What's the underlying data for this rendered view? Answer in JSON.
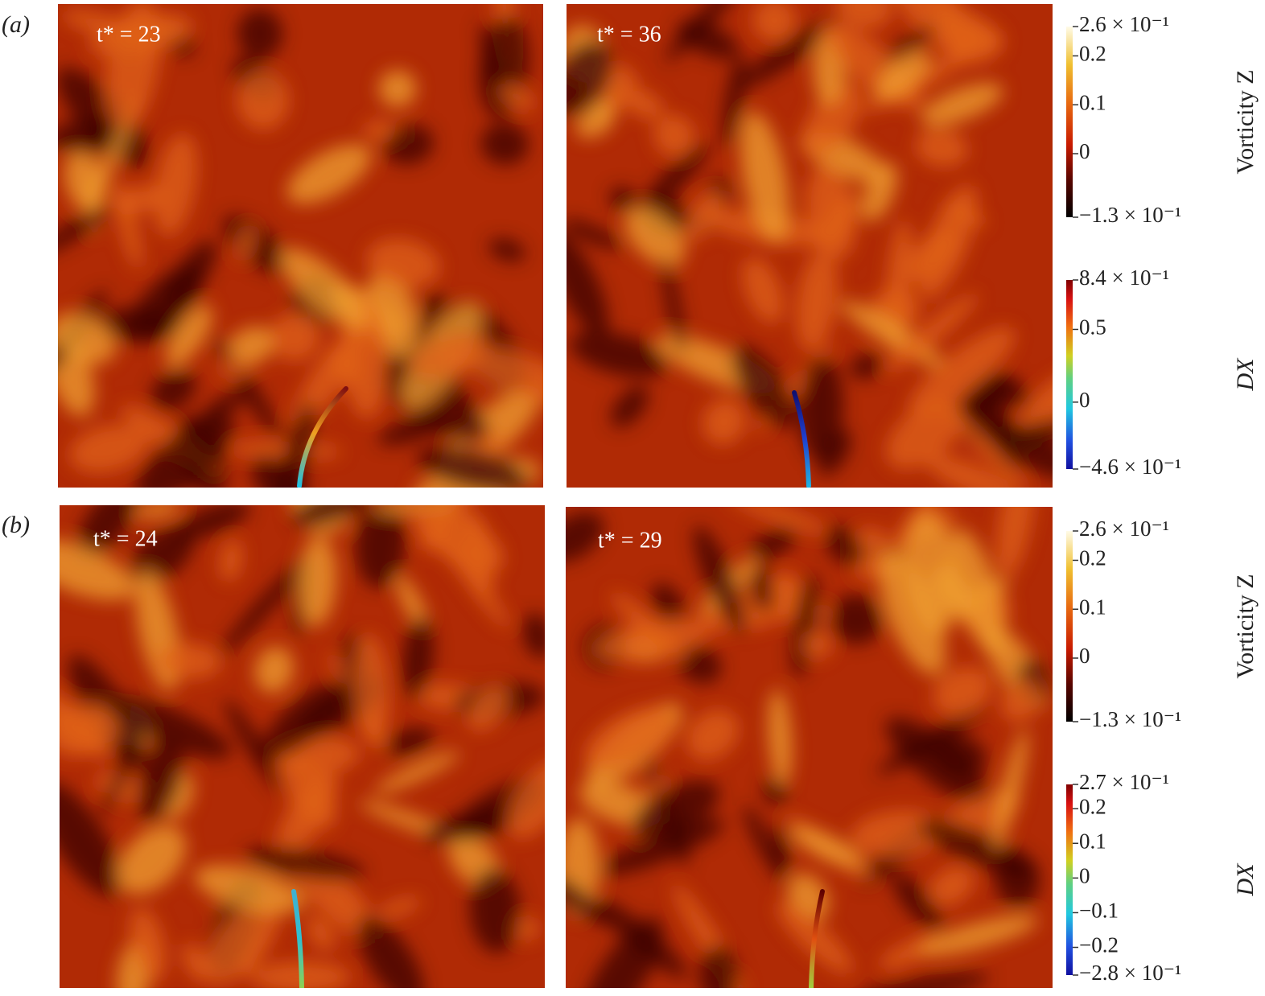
{
  "rows": [
    {
      "label": "(a)",
      "panels": [
        {
          "time": "t* = 23"
        },
        {
          "time": "t* = 36"
        }
      ],
      "colorbars": [
        {
          "title": "Vorticity Z",
          "ticks": [
            {
              "value": 0.26,
              "label": "2.6 × 10⁻¹"
            },
            0.2,
            0.1,
            0,
            {
              "value": -0.13,
              "label": "−1.3 × 10⁻¹"
            }
          ]
        },
        {
          "title": "DX",
          "ticks": [
            {
              "value": 0.84,
              "label": "8.4 × 10⁻¹"
            },
            0.5,
            0,
            {
              "value": -0.46,
              "label": "−4.6 × 10⁻¹"
            }
          ]
        }
      ]
    },
    {
      "label": "(b)",
      "panels": [
        {
          "time": "t* = 24"
        },
        {
          "time": "t* = 29"
        }
      ],
      "colorbars": [
        {
          "title": "Vorticity Z",
          "ticks": [
            {
              "value": 0.26,
              "label": "2.6 × 10⁻¹"
            },
            0.2,
            0.1,
            0,
            {
              "value": -0.13,
              "label": "−1.3 × 10⁻¹"
            }
          ]
        },
        {
          "title": "DX",
          "ticks": [
            {
              "value": 0.27,
              "label": "2.7 × 10⁻¹"
            },
            0.2,
            0.1,
            0,
            {
              "value": -0.1,
              "label": "−0.1"
            },
            {
              "value": -0.2,
              "label": "−0.2"
            },
            {
              "value": -0.28,
              "label": "−2.8 × 10⁻¹"
            }
          ]
        }
      ]
    }
  ]
}
